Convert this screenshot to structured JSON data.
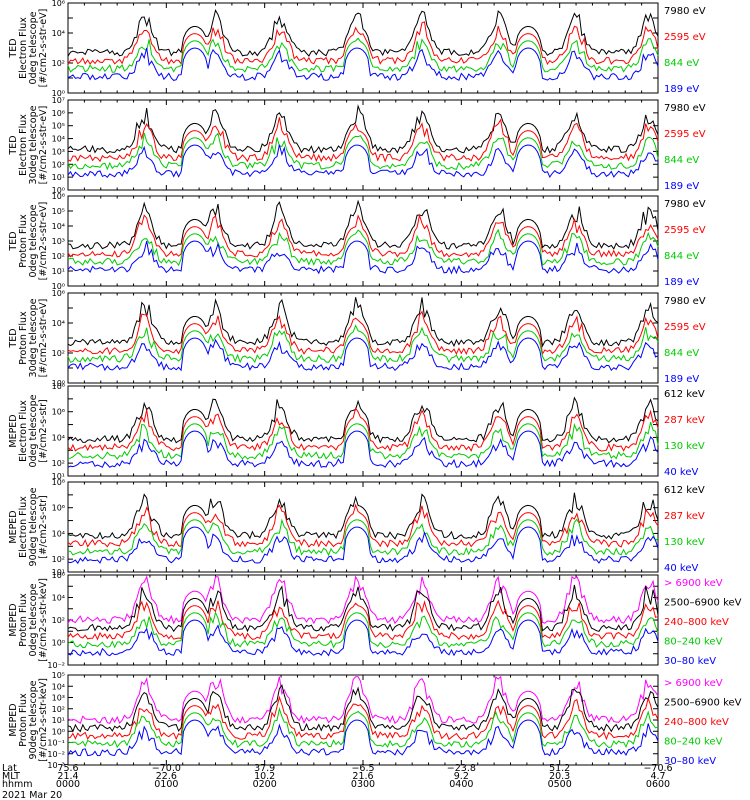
{
  "chart_data": {
    "type": "line",
    "date_label": "2021 Mar 20",
    "x_axis": {
      "row_labels": [
        "Lat",
        "MLT",
        "hhmm"
      ],
      "ticks": [
        {
          "lat": "75.6",
          "mlt": "21.4",
          "hhmm": "0000"
        },
        {
          "lat": "−70.0",
          "mlt": "22.6",
          "hhmm": "0100"
        },
        {
          "lat": "37.9",
          "mlt": "10.2",
          "hhmm": "0200"
        },
        {
          "lat": "−6.5",
          "mlt": "21.6",
          "hhmm": "0300"
        },
        {
          "lat": "−23.8",
          "mlt": "9.2",
          "hhmm": "0400"
        },
        {
          "lat": "51.2",
          "mlt": "20.3",
          "hhmm": "0500"
        },
        {
          "lat": "−70.6",
          "mlt": "4.7",
          "hhmm": "0600"
        }
      ]
    },
    "panels": [
      {
        "ylabel": [
          "TED",
          "Electron Flux",
          "0deg telescope",
          "[#/cm2-s-str-eV]"
        ],
        "yrange_exp": [
          0,
          6
        ],
        "tick_exps": [
          0,
          2,
          4,
          6
        ],
        "legend": [
          {
            "label": "7980 eV",
            "color": "#000000"
          },
          {
            "label": "2595 eV",
            "color": "#ff0000"
          },
          {
            "label": "844 eV",
            "color": "#00cc00"
          },
          {
            "label": "189 eV",
            "color": "#0000ff"
          }
        ]
      },
      {
        "ylabel": [
          "TED",
          "Electron Flux",
          "30deg telescope",
          "[#/cm2-s-str-eV]"
        ],
        "yrange_exp": [
          0,
          7
        ],
        "tick_exps": [
          0,
          1,
          2,
          3,
          4,
          5,
          6,
          7
        ],
        "legend": [
          {
            "label": "7980 eV",
            "color": "#000000"
          },
          {
            "label": "2595 eV",
            "color": "#ff0000"
          },
          {
            "label": "844 eV",
            "color": "#00cc00"
          },
          {
            "label": "189 eV",
            "color": "#0000ff"
          }
        ]
      },
      {
        "ylabel": [
          "TED",
          "Proton Flux",
          "0deg telescope",
          "[#/cm2-s-str-eV]"
        ],
        "yrange_exp": [
          0,
          6
        ],
        "tick_exps": [
          0,
          1,
          2,
          3,
          4,
          5,
          6
        ],
        "legend": [
          {
            "label": "7980 eV",
            "color": "#000000"
          },
          {
            "label": "2595 eV",
            "color": "#ff0000"
          },
          {
            "label": "844 eV",
            "color": "#00cc00"
          },
          {
            "label": "189 eV",
            "color": "#0000ff"
          }
        ]
      },
      {
        "ylabel": [
          "TED",
          "Proton Flux",
          "30deg telescope",
          "[#/cm2-s-str-eV]"
        ],
        "yrange_exp": [
          0,
          6
        ],
        "tick_exps": [
          0,
          2,
          4,
          6
        ],
        "legend": [
          {
            "label": "7980 eV",
            "color": "#000000"
          },
          {
            "label": "2595 eV",
            "color": "#ff0000"
          },
          {
            "label": "844 eV",
            "color": "#00cc00"
          },
          {
            "label": "189 eV",
            "color": "#0000ff"
          }
        ]
      },
      {
        "ylabel": [
          "MEPED",
          "Electron Flux",
          "0deg telescope",
          "[#/cm2-s-str]"
        ],
        "yrange_exp": [
          1,
          8
        ],
        "tick_exps": [
          1,
          2,
          4,
          6,
          8
        ],
        "legend": [
          {
            "label": "612 keV",
            "color": "#000000"
          },
          {
            "label": "287 keV",
            "color": "#ff0000"
          },
          {
            "label": "130 keV",
            "color": "#00cc00"
          },
          {
            "label": "40 keV",
            "color": "#0000ff"
          }
        ]
      },
      {
        "ylabel": [
          "MEPED",
          "Electron Flux",
          "90deg telescope",
          "[#/cm2-s-str]"
        ],
        "yrange_exp": [
          1,
          8
        ],
        "tick_exps": [
          1,
          2,
          4,
          6,
          8
        ],
        "legend": [
          {
            "label": "612 keV",
            "color": "#000000"
          },
          {
            "label": "287 keV",
            "color": "#ff0000"
          },
          {
            "label": "130 keV",
            "color": "#00cc00"
          },
          {
            "label": "40 keV",
            "color": "#0000ff"
          }
        ]
      },
      {
        "ylabel": [
          "MEPED",
          "Proton Flux",
          "0deg telescope",
          "[#/cm2-s-str-keV]"
        ],
        "yrange_exp": [
          -2,
          6
        ],
        "tick_exps": [
          -2,
          0,
          2,
          4,
          6
        ],
        "legend": [
          {
            "label": "> 6900 keV",
            "color": "#ff00ff"
          },
          {
            "label": "2500–6900 keV",
            "color": "#000000"
          },
          {
            "label": "240–800 keV",
            "color": "#ff0000"
          },
          {
            "label": "80–240 keV",
            "color": "#00cc00"
          },
          {
            "label": "30–80 keV",
            "color": "#0000ff"
          }
        ]
      },
      {
        "ylabel": [
          "MEPED",
          "Proton Flux",
          "90deg telescope",
          "[#/cm2-s-str-keV]"
        ],
        "yrange_exp": [
          -3,
          5
        ],
        "tick_exps": [
          -3,
          -2,
          -1,
          0,
          1,
          2,
          3,
          4,
          5
        ],
        "legend": [
          {
            "label": "> 6900 keV",
            "color": "#ff00ff"
          },
          {
            "label": "2500–6900 keV",
            "color": "#000000"
          },
          {
            "label": "240–800 keV",
            "color": "#ff0000"
          },
          {
            "label": "80–240 keV",
            "color": "#00cc00"
          },
          {
            "label": "30–80 keV",
            "color": "#0000ff"
          }
        ]
      }
    ]
  }
}
